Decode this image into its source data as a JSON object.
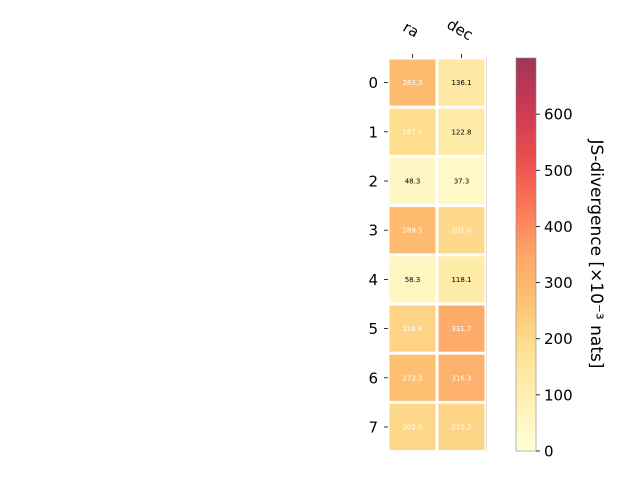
{
  "chart_data": {
    "type": "heatmap",
    "title": "",
    "columns": [
      "ra",
      "dec"
    ],
    "rows": [
      "0",
      "1",
      "2",
      "3",
      "4",
      "5",
      "6",
      "7"
    ],
    "values": [
      [
        283.3,
        136.1
      ],
      [
        187.5,
        122.8
      ],
      [
        48.3,
        37.3
      ],
      [
        289.5,
        201.0
      ],
      [
        58.3,
        118.1
      ],
      [
        216.8,
        331.7
      ],
      [
        273.3,
        316.3
      ],
      [
        202.0,
        210.2
      ]
    ],
    "value_labels": [
      [
        "283.3",
        "136.1"
      ],
      [
        "187.5",
        "122.8"
      ],
      [
        "48.3",
        "37.3"
      ],
      [
        "289.5",
        "201.0"
      ],
      [
        "58.3",
        "118.1"
      ],
      [
        "216.8",
        "331.7"
      ],
      [
        "273.3",
        "316.3"
      ],
      [
        "202.0",
        "210.2"
      ]
    ],
    "colormap": "YlOrRd",
    "color_range": [
      0,
      700
    ],
    "colorbar": {
      "label": "JS-divergence [×10⁻³ nats]",
      "ticks": [
        0,
        100,
        200,
        300,
        400,
        500,
        600
      ],
      "tick_labels": [
        "0",
        "100",
        "200",
        "300",
        "400",
        "500",
        "600"
      ]
    },
    "grid": false,
    "legend": "none"
  }
}
